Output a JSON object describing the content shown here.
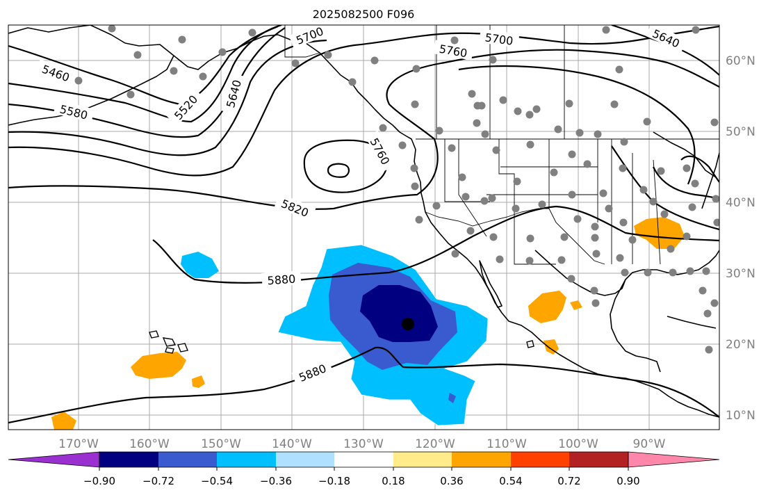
{
  "title": "2025082500 F096",
  "map": {
    "lon_ticks": [
      "170°W",
      "160°W",
      "150°W",
      "140°W",
      "130°W",
      "120°W",
      "110°W",
      "100°W",
      "90°W"
    ],
    "lat_ticks": [
      "60°N",
      "50°N",
      "40°N",
      "30°N",
      "20°N",
      "10°N"
    ],
    "contour_labels": [
      "5460",
      "5520",
      "5580",
      "5640",
      "5700",
      "5700",
      "5760",
      "5760",
      "5640",
      "5820",
      "5880",
      "5880"
    ],
    "contour_color": "#000000",
    "station_marker_color": "#808080"
  },
  "colorbar": {
    "tick_labels": [
      "−0.90",
      "−0.72",
      "−0.54",
      "−0.36",
      "−0.18",
      "0.18",
      "0.36",
      "0.54",
      "0.72",
      "0.90"
    ],
    "colors": [
      "#9b30d0",
      "#000080",
      "#3a5bd0",
      "#00bfff",
      "#b0e0ff",
      "#ffffff",
      "#ffeb8a",
      "#ffa500",
      "#ff4000",
      "#b22222",
      "#ff88aa"
    ]
  }
}
